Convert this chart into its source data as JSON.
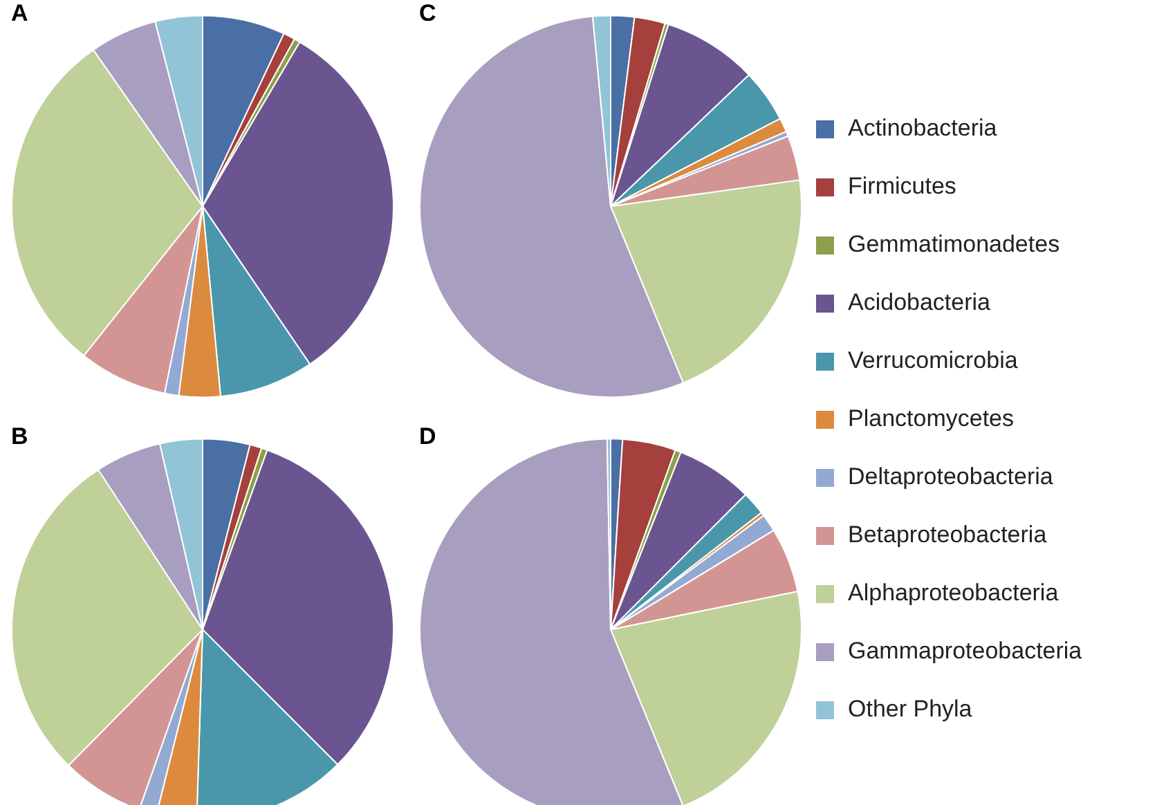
{
  "chart_data": [
    {
      "type": "pie",
      "title": "A",
      "legend": "right",
      "categories": [
        "Actinobacteria",
        "Firmicutes",
        "Gemmatimonadetes",
        "Acidobacteria",
        "Verrucomicrobia",
        "Planctomycetes",
        "Deltaproteobacteria",
        "Betaproteobacteria",
        "Alphaproteobacteria",
        "Gammaproteobacteria",
        "Other Phyla"
      ],
      "values": [
        7,
        1,
        0.5,
        32,
        8,
        3.5,
        1.2,
        7.5,
        29.6,
        5.7,
        4
      ],
      "colors": [
        "#4a6fa5",
        "#a5403d",
        "#8aa04a",
        "#6b5590",
        "#4a97ab",
        "#db8a3e",
        "#92a9d4",
        "#d39594",
        "#bfd098",
        "#a89ebf",
        "#92c4d8"
      ]
    },
    {
      "type": "pie",
      "title": "C",
      "categories": [
        null,
        null,
        null,
        null,
        null,
        null,
        null,
        null,
        null,
        null,
        null
      ],
      "values": [
        2,
        2.6,
        0.3,
        8,
        4.5,
        1.2,
        0.4,
        3.8,
        21,
        54.7,
        1.5
      ],
      "colors": [
        "#4a6fa5",
        "#a5403d",
        "#8aa04a",
        "#6b5590",
        "#4a97ab",
        "#db8a3e",
        "#92a9d4",
        "#d39594",
        "#bfd098",
        "#a89ebf",
        "#92c4d8"
      ]
    },
    {
      "type": "pie",
      "title": "B",
      "categories": [
        null,
        null,
        null,
        null,
        null,
        null,
        null,
        null,
        null,
        null,
        null
      ],
      "values": [
        4,
        1,
        0.5,
        32,
        13,
        3.4,
        1.5,
        7,
        28.4,
        5.6,
        3.6
      ],
      "colors": [
        "#4a6fa5",
        "#a5403d",
        "#8aa04a",
        "#6b5590",
        "#4a97ab",
        "#db8a3e",
        "#92a9d4",
        "#d39594",
        "#bfd098",
        "#a89ebf",
        "#92c4d8"
      ]
    },
    {
      "type": "pie",
      "title": "D",
      "categories": [
        null,
        null,
        null,
        null,
        null,
        null,
        null,
        null,
        null,
        null,
        null
      ],
      "values": [
        1,
        4.5,
        0.5,
        6.5,
        2,
        0.3,
        1.5,
        5.5,
        22,
        55.9,
        0.3
      ],
      "colors": [
        "#4a6fa5",
        "#a5403d",
        "#8aa04a",
        "#6b5590",
        "#4a97ab",
        "#db8a3e",
        "#92a9d4",
        "#d39594",
        "#bfd098",
        "#a89ebf",
        "#92c4d8"
      ]
    }
  ]
}
